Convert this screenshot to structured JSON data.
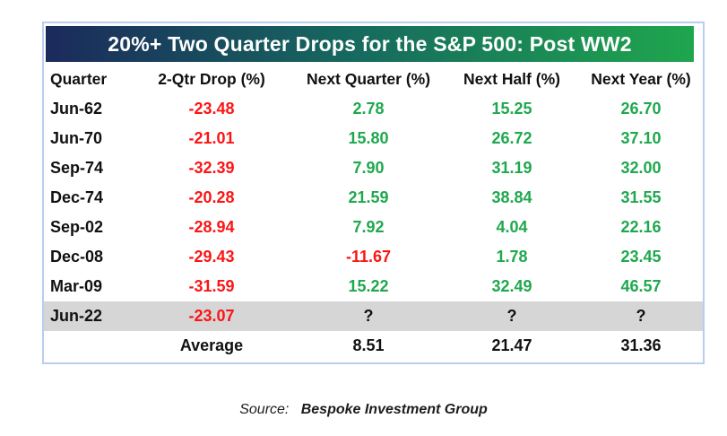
{
  "title": "20%+ Two Quarter Drops for the S&P 500: Post WW2",
  "table": {
    "columns": [
      "Quarter",
      "2-Qtr Drop (%)",
      "Next Quarter (%)",
      "Next Half (%)",
      "Next Year (%)"
    ],
    "rows": [
      {
        "quarter": "Jun-62",
        "values": [
          "-23.48",
          "2.78",
          "15.25",
          "26.70"
        ],
        "highlight": false
      },
      {
        "quarter": "Jun-70",
        "values": [
          "-21.01",
          "15.80",
          "26.72",
          "37.10"
        ],
        "highlight": false
      },
      {
        "quarter": "Sep-74",
        "values": [
          "-32.39",
          "7.90",
          "31.19",
          "32.00"
        ],
        "highlight": false
      },
      {
        "quarter": "Dec-74",
        "values": [
          "-20.28",
          "21.59",
          "38.84",
          "31.55"
        ],
        "highlight": false
      },
      {
        "quarter": "Sep-02",
        "values": [
          "-28.94",
          "7.92",
          "4.04",
          "22.16"
        ],
        "highlight": false
      },
      {
        "quarter": "Dec-08",
        "values": [
          "-29.43",
          "-11.67",
          "1.78",
          "23.45"
        ],
        "highlight": false
      },
      {
        "quarter": "Mar-09",
        "values": [
          "-31.59",
          "15.22",
          "32.49",
          "46.57"
        ],
        "highlight": false
      },
      {
        "quarter": "Jun-22",
        "values": [
          "-23.07",
          "?",
          "?",
          "?"
        ],
        "highlight": true
      }
    ],
    "average": {
      "label": "Average",
      "values": [
        "8.51",
        "21.47",
        "31.36"
      ]
    }
  },
  "source": {
    "prefix": "Source:",
    "name": "Bespoke Investment Group"
  },
  "colors": {
    "title_gradient_left": "#1b2a5c",
    "title_gradient_mid": "#166a5e",
    "title_gradient_right": "#1fa64d",
    "negative_value": "#fb1515",
    "positive_value": "#1fa84e",
    "highlight_row_bg": "#d6d6d6",
    "frame_border": "#b9cdee",
    "title_text": "#ffffff"
  },
  "chart_data": {
    "type": "table",
    "title": "20%+ Two Quarter Drops for the S&P 500: Post WW2",
    "columns": [
      "Quarter",
      "2-Qtr Drop (%)",
      "Next Quarter (%)",
      "Next Half (%)",
      "Next Year (%)"
    ],
    "rows": [
      [
        "Jun-62",
        -23.48,
        2.78,
        15.25,
        26.7
      ],
      [
        "Jun-70",
        -21.01,
        15.8,
        26.72,
        37.1
      ],
      [
        "Sep-74",
        -32.39,
        7.9,
        31.19,
        32.0
      ],
      [
        "Dec-74",
        -20.28,
        21.59,
        38.84,
        31.55
      ],
      [
        "Sep-02",
        -28.94,
        7.92,
        4.04,
        22.16
      ],
      [
        "Dec-08",
        -29.43,
        -11.67,
        1.78,
        23.45
      ],
      [
        "Mar-09",
        -31.59,
        15.22,
        32.49,
        46.57
      ],
      [
        "Jun-22",
        -23.07,
        "?",
        "?",
        "?"
      ]
    ],
    "average_row": [
      "",
      "Average",
      8.51,
      21.47,
      31.36
    ],
    "highlighted_row": "Jun-22",
    "value_color_rule": "negative=red, positive=green, unknown=black",
    "source": "Source: Bespoke Investment Group"
  }
}
